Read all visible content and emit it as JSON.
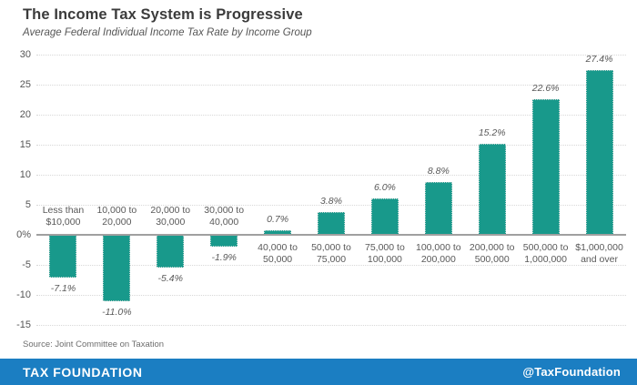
{
  "header": {
    "title": "The Income Tax System is Progressive",
    "subtitle": "Average Federal Individual Income Tax Rate by Income Group"
  },
  "chart_data": {
    "type": "bar",
    "title": "The Income Tax System is Progressive",
    "subtitle": "Average Federal Individual Income Tax Rate by Income Group",
    "categories": [
      [
        "Less than",
        "$10,000"
      ],
      [
        "10,000 to",
        "20,000"
      ],
      [
        "20,000 to",
        "30,000"
      ],
      [
        "30,000 to",
        "40,000"
      ],
      [
        "40,000 to",
        "50,000"
      ],
      [
        "50,000 to",
        "75,000"
      ],
      [
        "75,000 to",
        "100,000"
      ],
      [
        "100,000 to",
        "200,000"
      ],
      [
        "200,000 to",
        "500,000"
      ],
      [
        "500,000 to",
        "1,000,000"
      ],
      [
        "$1,000,000",
        "and over"
      ]
    ],
    "values": [
      -7.1,
      -11.0,
      -5.4,
      -1.9,
      0.7,
      3.8,
      6.0,
      8.8,
      15.2,
      22.6,
      27.4
    ],
    "value_labels": [
      "-7.1%",
      "-11.0%",
      "-5.4%",
      "-1.9%",
      "0.7%",
      "3.8%",
      "6.0%",
      "8.8%",
      "15.2%",
      "22.6%",
      "27.4%"
    ],
    "y_ticks": [
      30,
      25,
      20,
      15,
      10,
      5,
      0,
      -5,
      -10,
      -15
    ],
    "y_tick_labels": [
      "30",
      "25",
      "20",
      "15",
      "10",
      "5",
      "0%",
      "-5",
      "-10",
      "-15"
    ],
    "ylim": [
      -15,
      30
    ],
    "xlabel": "",
    "ylabel": "",
    "grid": "horizontal-dotted",
    "legend": "none",
    "bar_color": "#18998b"
  },
  "source": "Source: Joint Committee on Taxation",
  "footer": {
    "brand": "TAX FOUNDATION",
    "handle": "@TaxFoundation",
    "background": "#1b7ec2"
  },
  "colors": {
    "bar_teal": "#18998b",
    "footer_blue": "#1b7ec2",
    "title_text": "#3b3b3b",
    "label_text": "#595959",
    "gridline": "#d8d8d8",
    "zero_line": "#a0a0a0"
  }
}
